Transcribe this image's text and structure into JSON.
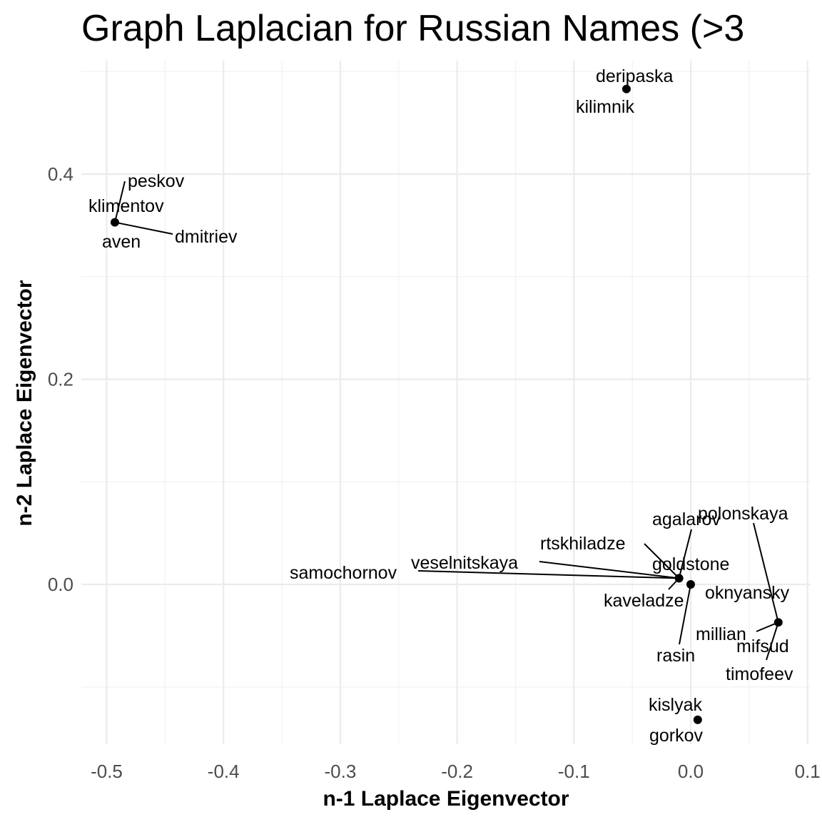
{
  "chart_data": {
    "type": "scatter",
    "title": "Graph Laplacian for Russian Names (>3",
    "xlabel": "n-1 Laplace Eigenvector",
    "ylabel": "n-2 Laplace Eigenvector",
    "xlim": [
      -0.52,
      0.1
    ],
    "ylim": [
      -0.16,
      0.5
    ],
    "x_ticks": [
      -0.5,
      -0.4,
      -0.3,
      -0.2,
      -0.1,
      0.0,
      0.1
    ],
    "x_tick_labels": [
      "-0.5",
      "-0.4",
      "-0.3",
      "-0.2",
      "-0.1",
      "0.0",
      "0.1"
    ],
    "y_ticks": [
      0.0,
      0.2,
      0.4
    ],
    "y_tick_labels": [
      "0.0",
      "0.2",
      "0.4"
    ],
    "grid": true,
    "points": [
      {
        "x": -0.055,
        "y": 0.483
      },
      {
        "x": -0.493,
        "y": 0.353
      },
      {
        "x": -0.01,
        "y": 0.006
      },
      {
        "x": 0.0,
        "y": 0.0
      },
      {
        "x": 0.075,
        "y": -0.037
      },
      {
        "x": 0.006,
        "y": -0.132
      }
    ],
    "labels": [
      {
        "text": "deripaska",
        "x": -0.055,
        "y": 0.483
      },
      {
        "text": "kilimnik",
        "x": -0.055,
        "y": 0.483
      },
      {
        "text": "peskov",
        "x": -0.493,
        "y": 0.353
      },
      {
        "text": "klimentov",
        "x": -0.493,
        "y": 0.353
      },
      {
        "text": "aven",
        "x": -0.493,
        "y": 0.353
      },
      {
        "text": "dmitriev",
        "x": -0.493,
        "y": 0.353
      },
      {
        "text": "agalarov",
        "x": -0.01,
        "y": 0.006
      },
      {
        "text": "rtskhiladze",
        "x": -0.01,
        "y": 0.006
      },
      {
        "text": "veselnitskaya",
        "x": -0.01,
        "y": 0.006
      },
      {
        "text": "samochornov",
        "x": -0.01,
        "y": 0.006
      },
      {
        "text": "kaveladze",
        "x": -0.01,
        "y": 0.006
      },
      {
        "text": "goldstone",
        "x": 0.0,
        "y": 0.0
      },
      {
        "text": "rasin",
        "x": 0.0,
        "y": 0.0
      },
      {
        "text": "polonskaya",
        "x": 0.075,
        "y": -0.037
      },
      {
        "text": "oknyansky",
        "x": 0.075,
        "y": -0.037
      },
      {
        "text": "millian",
        "x": 0.075,
        "y": -0.037
      },
      {
        "text": "mifsud",
        "x": 0.075,
        "y": -0.037
      },
      {
        "text": "timofeev",
        "x": 0.075,
        "y": -0.037
      },
      {
        "text": "kislyak",
        "x": 0.006,
        "y": -0.132
      },
      {
        "text": "gorkov",
        "x": 0.006,
        "y": -0.132
      }
    ]
  }
}
